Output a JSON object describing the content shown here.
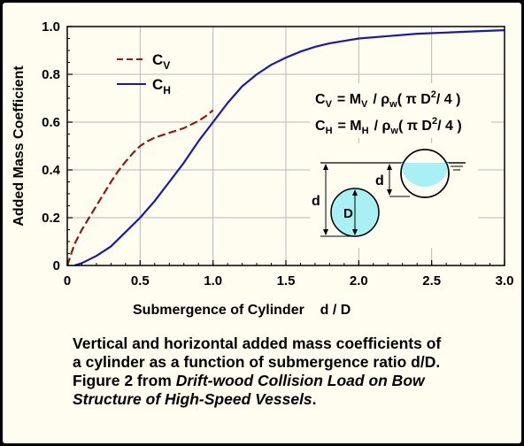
{
  "chart_data": {
    "type": "line",
    "xlabel": "Submergence of Cylinder    d / D",
    "ylabel": "Added Mass Coefficient",
    "xlim": [
      0,
      3.0
    ],
    "ylim": [
      0,
      1.0
    ],
    "xticks": [
      "0",
      "0.5",
      "1.0",
      "1.5",
      "2.0",
      "2.5",
      "3.0"
    ],
    "yticks": [
      "0",
      "0.2",
      "0.4",
      "0.6",
      "0.8",
      "1.0"
    ],
    "grid": true,
    "legend_position": "top-left",
    "series": [
      {
        "name": "C",
        "subscript": "V",
        "color": "#8b1a1a",
        "dash": "dashed",
        "x": [
          0,
          0.05,
          0.1,
          0.15,
          0.2,
          0.25,
          0.3,
          0.35,
          0.4,
          0.45,
          0.5,
          0.55,
          0.6,
          0.65,
          0.7,
          0.75,
          0.8,
          0.85,
          0.9,
          0.95,
          1.0
        ],
        "y": [
          0.0,
          0.09,
          0.15,
          0.2,
          0.25,
          0.3,
          0.35,
          0.395,
          0.435,
          0.47,
          0.5,
          0.52,
          0.535,
          0.545,
          0.555,
          0.565,
          0.575,
          0.59,
          0.605,
          0.625,
          0.65
        ]
      },
      {
        "name": "C",
        "subscript": "H",
        "color": "#1a1aa6",
        "dash": "solid",
        "x": [
          0.05,
          0.1,
          0.2,
          0.3,
          0.4,
          0.5,
          0.6,
          0.7,
          0.8,
          0.9,
          1.0,
          1.1,
          1.2,
          1.3,
          1.4,
          1.5,
          1.6,
          1.7,
          1.8,
          1.9,
          2.0,
          2.2,
          2.4,
          2.6,
          2.8,
          3.0
        ],
        "y": [
          0.0,
          0.01,
          0.04,
          0.08,
          0.14,
          0.2,
          0.27,
          0.35,
          0.43,
          0.52,
          0.6,
          0.68,
          0.75,
          0.8,
          0.84,
          0.87,
          0.895,
          0.915,
          0.93,
          0.94,
          0.95,
          0.96,
          0.97,
          0.975,
          0.98,
          0.985
        ]
      }
    ]
  },
  "legend": {
    "cv_main": "C",
    "cv_sub": "V",
    "ch_main": "C",
    "ch_sub": "H"
  },
  "equations": {
    "eq1_lhs": "C",
    "eq1_lhs_sub": "V",
    "eq1_mid": "= M",
    "eq1_mid_sub": "V",
    "eq1_rho": "/ ρ",
    "eq1_rho_sub": "w",
    "eq1_rest": "( π D",
    "eq1_sup": "2",
    "eq1_end": "/ 4 )",
    "eq2_lhs": "C",
    "eq2_lhs_sub": "H",
    "eq2_mid": "= M",
    "eq2_mid_sub": "H",
    "eq2_rho": "/ ρ",
    "eq2_rho_sub": "w",
    "eq2_rest": "( π D",
    "eq2_sup": "2",
    "eq2_end": "/ 4 )"
  },
  "schematic": {
    "label_d_small": "d",
    "label_d_large": "d",
    "label_D": "D",
    "water_color": "#a8f0f4"
  },
  "caption": {
    "line1": "Vertical and horizontal added mass coefficients of",
    "line2": "a cylinder as a function of submergence ratio d/D.",
    "line3_plain": "Figure 2 from ",
    "line3_ital": "Drift-wood Collision Load on Bow",
    "line4_ital": "Structure of High-Speed Vessels",
    "line4_end": "."
  }
}
